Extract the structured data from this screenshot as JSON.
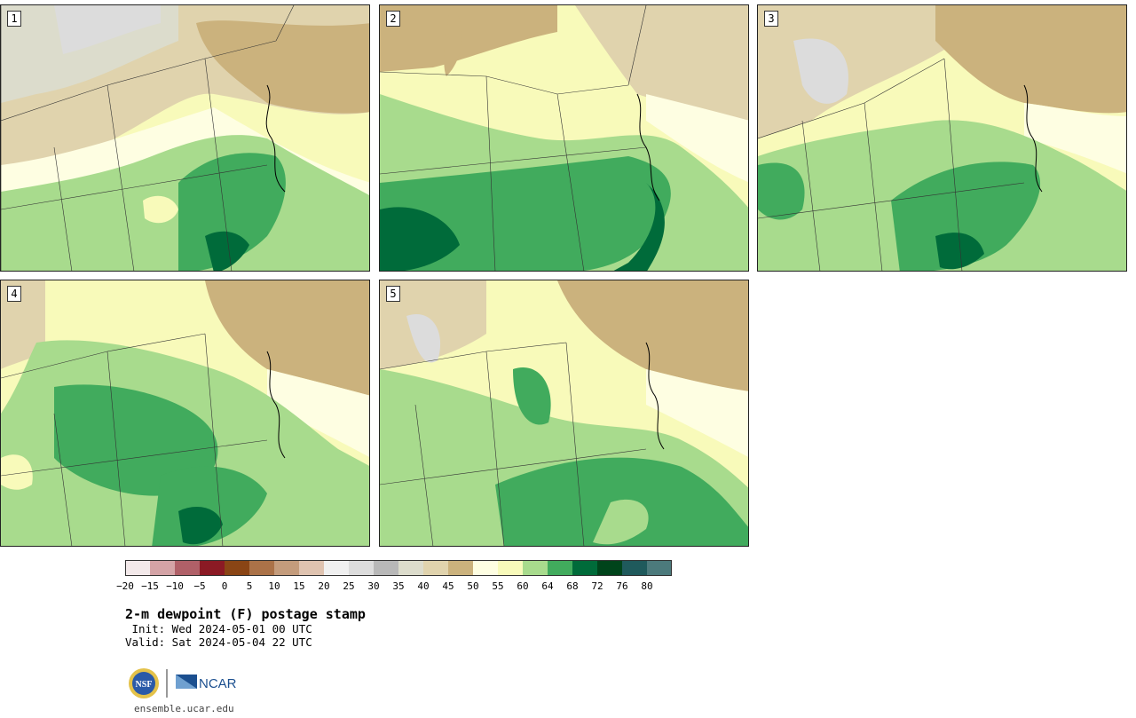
{
  "panels": [
    {
      "label": "1"
    },
    {
      "label": "2"
    },
    {
      "label": "3"
    },
    {
      "label": "4"
    },
    {
      "label": "5"
    }
  ],
  "colorbar": {
    "colors": [
      "#f3e9ea",
      "#d4a3a6",
      "#b06068",
      "#8b1a24",
      "#8a4515",
      "#ab7248",
      "#c49c7c",
      "#dfc3b0",
      "#f0f0f0",
      "#dcdcdc",
      "#b8b8b8",
      "#dcdccc",
      "#e0d3ad",
      "#cbb27d",
      "#fefee2",
      "#f8faba",
      "#a8db8d",
      "#41ab5d",
      "#006b3a",
      "#00441b",
      "#1f5a5c",
      "#4c7a7c"
    ],
    "ticks": [
      "−20",
      "−15",
      "−10",
      "−5",
      "0",
      "5",
      "10",
      "15",
      "20",
      "25",
      "30",
      "35",
      "40",
      "45",
      "50",
      "55",
      "60",
      "64",
      "68",
      "72",
      "76",
      "80"
    ]
  },
  "title": "2-m dewpoint (F) postage stamp",
  "init": " Init: Wed 2024-05-01 00 UTC",
  "valid": "Valid: Sat 2024-05-04 22 UTC",
  "logos": {
    "nsf": "NSF",
    "ncar": "NCAR"
  },
  "site": "ensemble.ucar.edu"
}
